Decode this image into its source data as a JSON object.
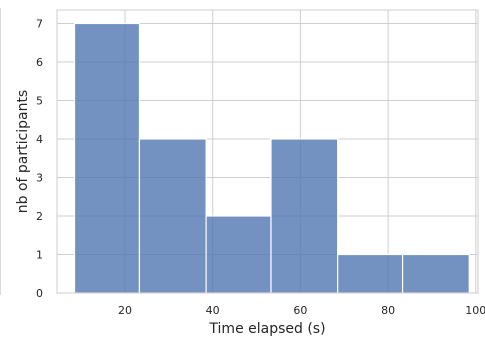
{
  "chart_data": {
    "type": "bar",
    "title": "",
    "xlabel": "Time elapsed (s)",
    "ylabel": "nb of participants",
    "xlim": [
      4.5,
      100.5
    ],
    "ylim": [
      0,
      7.35
    ],
    "xticks": [
      20,
      40,
      60,
      80,
      100
    ],
    "xtick_labels": [
      "20",
      "40",
      "60",
      "80",
      "100"
    ],
    "yticks": [
      0,
      1,
      2,
      3,
      4,
      5,
      6,
      7
    ],
    "ytick_labels": [
      "0",
      "1",
      "2",
      "3",
      "4",
      "5",
      "6",
      "7"
    ],
    "grid": true,
    "bar_color": "#4c72b0",
    "bins": [
      {
        "x_start": 8.5,
        "x_end": 23.3,
        "count": 7
      },
      {
        "x_start": 23.3,
        "x_end": 38.5,
        "count": 4
      },
      {
        "x_start": 38.5,
        "x_end": 53.3,
        "count": 2
      },
      {
        "x_start": 53.3,
        "x_end": 68.5,
        "count": 4
      },
      {
        "x_start": 68.5,
        "x_end": 83.3,
        "count": 1
      },
      {
        "x_start": 83.3,
        "x_end": 98.5,
        "count": 1
      }
    ]
  }
}
